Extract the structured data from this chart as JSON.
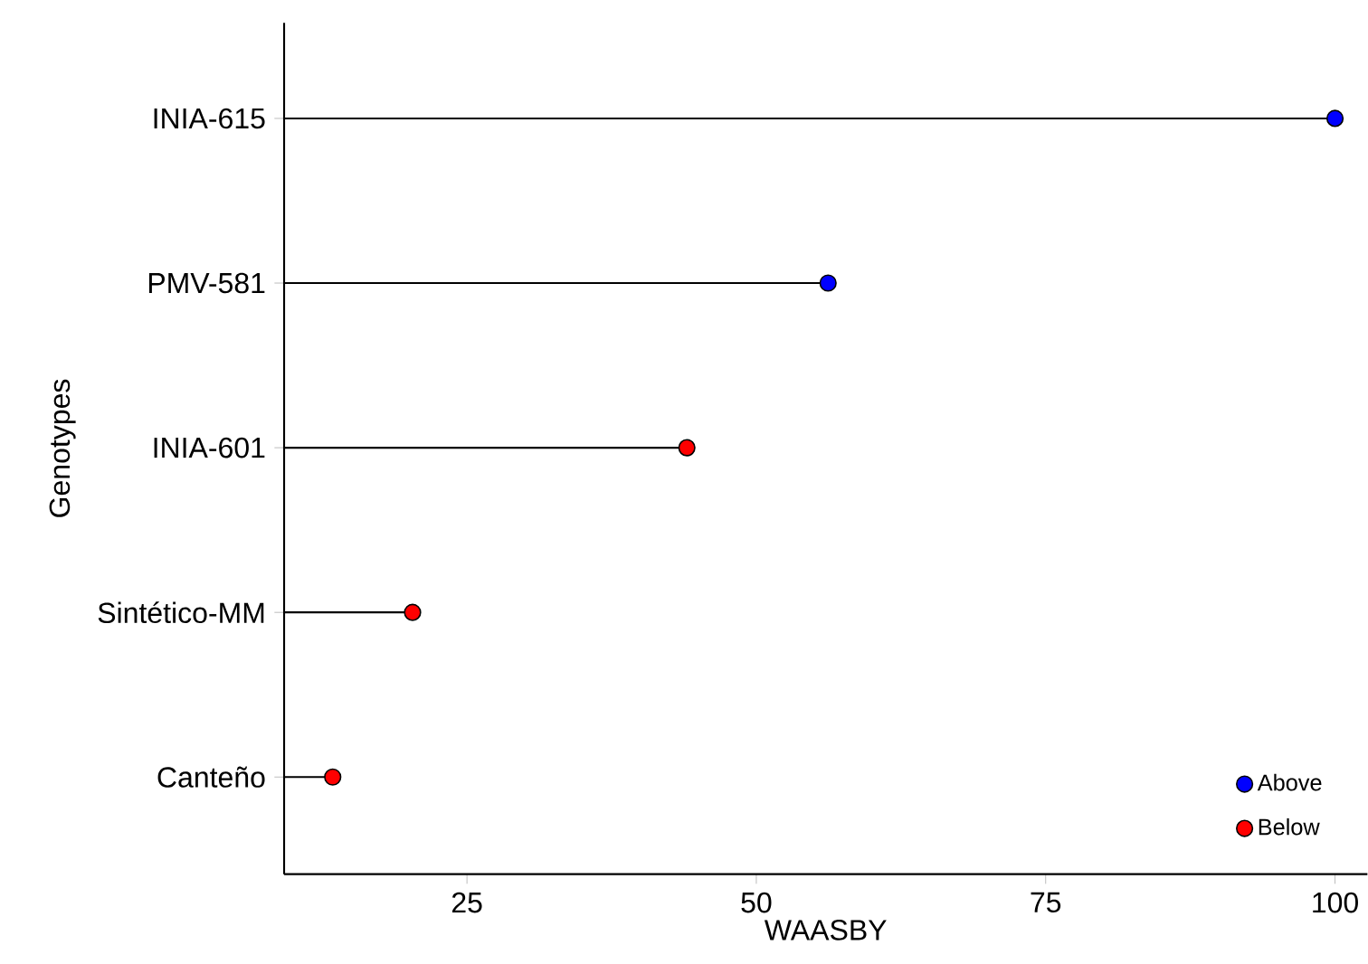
{
  "chart_data": {
    "type": "lollipop",
    "orientation": "horizontal",
    "xlabel": "WAASBY",
    "ylabel": "Genotypes",
    "categories": [
      "INIA-615",
      "PMV-581",
      "INIA-601",
      "Sintético-MM",
      "Canteño"
    ],
    "series": [
      {
        "name": "Above",
        "color": "#0000ff",
        "values": [
          100,
          56.2,
          null,
          null,
          null
        ]
      },
      {
        "name": "Below",
        "color": "#ff0000",
        "values": [
          null,
          null,
          44.0,
          20.3,
          13.4
        ]
      }
    ],
    "xlim": [
      9.2,
      102.8
    ],
    "xticks": [
      25,
      50,
      75,
      100
    ],
    "legend": "bottom right"
  }
}
